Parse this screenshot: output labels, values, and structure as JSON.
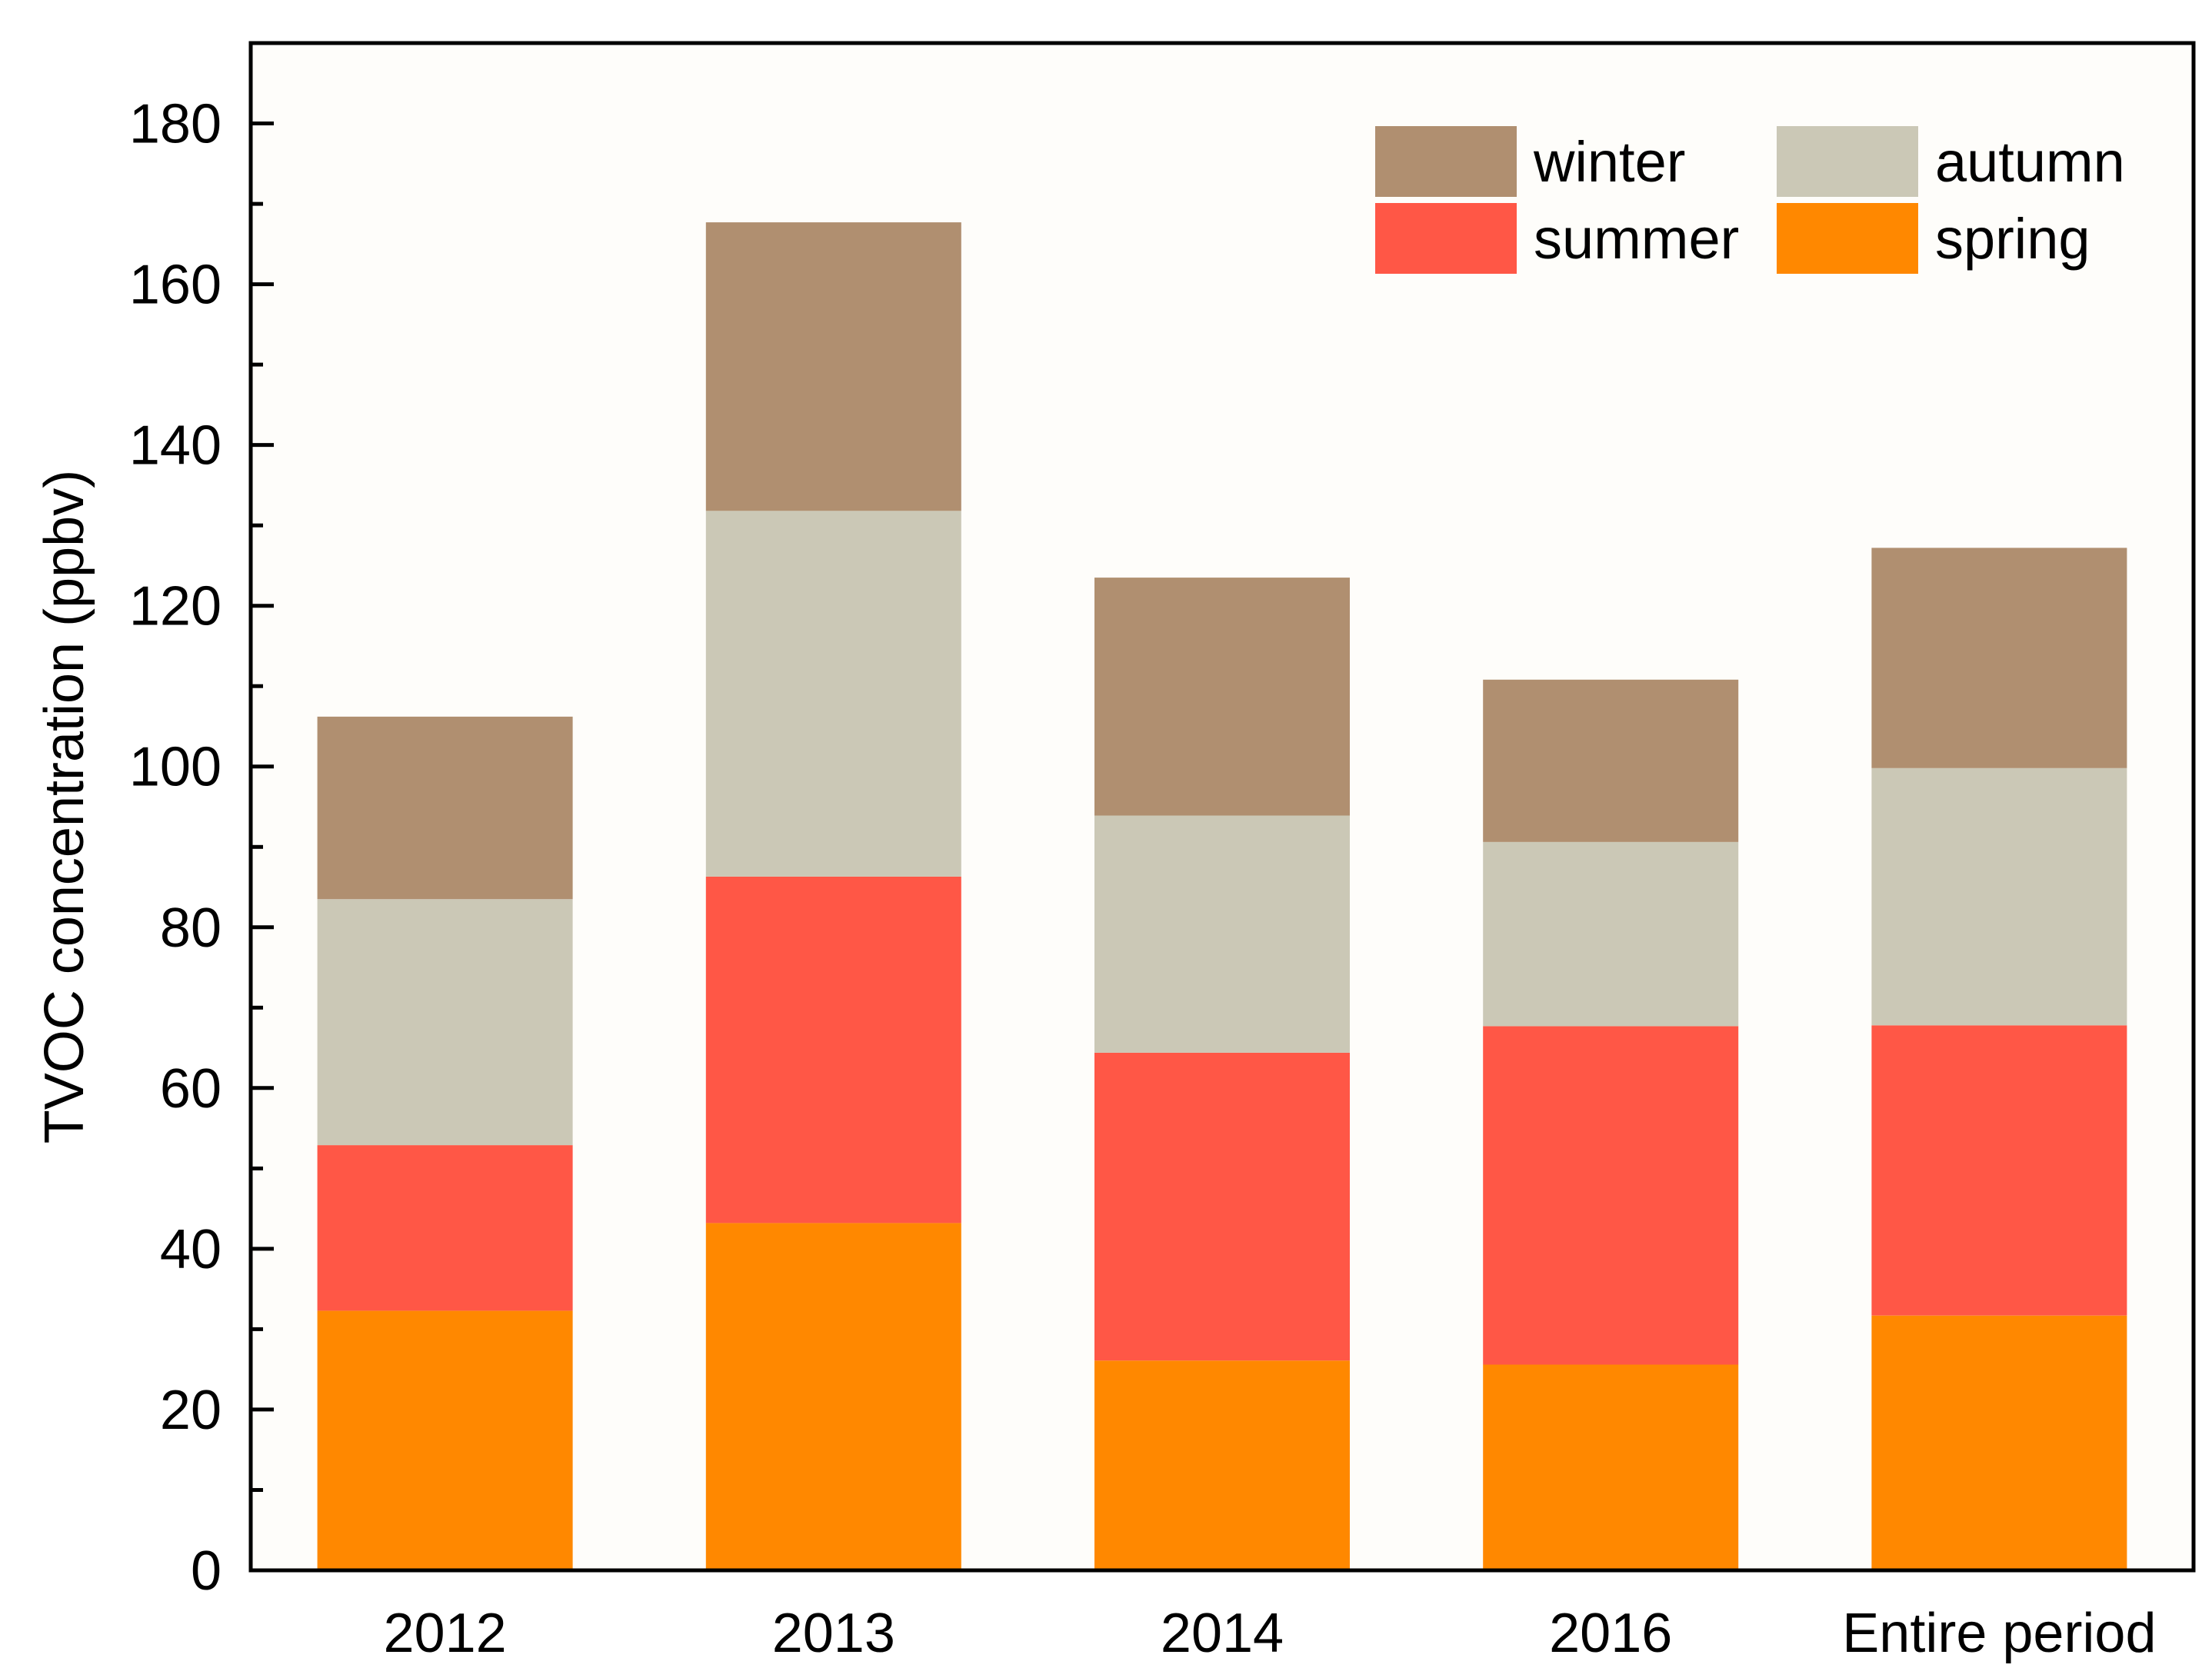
{
  "chart_data": {
    "type": "bar",
    "stacked": true,
    "title": "",
    "xlabel": "",
    "ylabel": "TVOC concentration (ppbv)",
    "ylim": [
      0,
      190
    ],
    "yticks": [
      0,
      20,
      40,
      60,
      80,
      100,
      120,
      140,
      160,
      180
    ],
    "ytick_labels": [
      "0",
      "20",
      "40",
      "60",
      "80",
      "100",
      "120",
      "140",
      "160",
      "180"
    ],
    "categories": [
      "2012",
      "2013",
      "2014",
      "2016",
      "Entire period"
    ],
    "series": [
      {
        "name": "spring",
        "color": "#FF8800",
        "values": [
          32.3,
          43.2,
          26.1,
          25.6,
          31.7
        ]
      },
      {
        "name": "summer",
        "color": "#FF5746",
        "values": [
          20.6,
          43.1,
          38.3,
          42.1,
          36.1
        ]
      },
      {
        "name": "autumn",
        "color": "#CBC8B6",
        "values": [
          30.6,
          45.5,
          29.5,
          22.9,
          32.0
        ]
      },
      {
        "name": "winter",
        "color": "#B08F70",
        "values": [
          22.7,
          35.9,
          29.6,
          20.2,
          27.4
        ]
      }
    ],
    "legend": {
      "position": "top-right",
      "order": [
        "winter",
        "autumn",
        "summer",
        "spring"
      ]
    },
    "grid": false
  }
}
